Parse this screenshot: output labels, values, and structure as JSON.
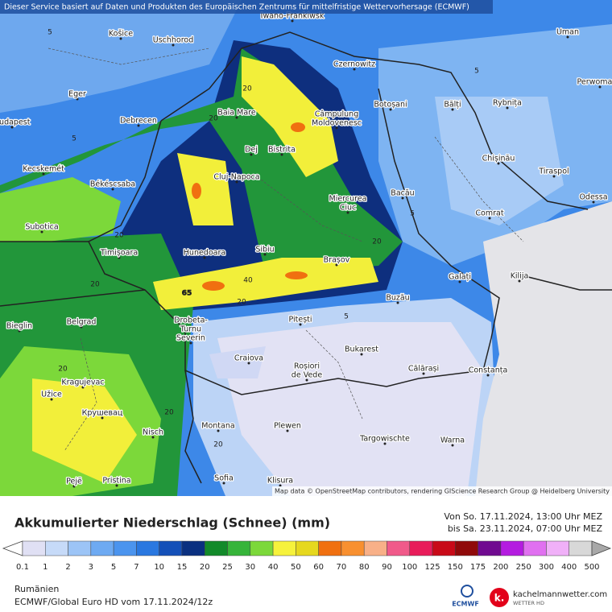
{
  "header": "Dieser Service basiert auf Daten und Produkten des Europäischen Zentrums für mittelfristige Wettervorhersage (ECMWF)",
  "attribution": "Map data © OpenStreetMap contributors, rendering GIScience Research Group @ Heidelberg University",
  "places": [
    [
      "Iwano-Frankiwsk"
    ],
    [
      "Košice"
    ],
    [
      "Uschhorod"
    ],
    [
      "Uman"
    ],
    [
      "Czernowitz"
    ],
    [
      "Perwomaisk"
    ],
    [
      "Eger"
    ],
    [
      "Baia Mare"
    ],
    [
      "Câmpulung",
      "Moldovenesc"
    ],
    [
      "Botoșani"
    ],
    [
      "Bălți"
    ],
    [
      "Rybnița"
    ],
    [
      "Budapest"
    ],
    [
      "Debrecen"
    ],
    [
      "Dej"
    ],
    [
      "Bistrita"
    ],
    [
      "Chișinău"
    ],
    [
      "Kecskemét"
    ],
    [
      "Tiraspol"
    ],
    [
      "Cluj-Napoca"
    ],
    [
      "Békéscsaba"
    ],
    [
      "Miercurea",
      "Ciuc"
    ],
    [
      "Bacău"
    ],
    [
      "Odessa"
    ],
    [
      "Comrat"
    ],
    [
      "Subotica"
    ],
    [
      "Timișoara"
    ],
    [
      "Hunedoara"
    ],
    [
      "Sibiu"
    ],
    [
      "Brașov"
    ],
    [
      "Galați"
    ],
    [
      "Kilija"
    ],
    [
      "Buzău"
    ],
    [
      "Drobeta-",
      "Turnu",
      "Severin"
    ],
    [
      "Pitești"
    ],
    [
      "Bieglin"
    ],
    [
      "Belgrad"
    ],
    [
      "Bukarest"
    ],
    [
      "Craiova"
    ],
    [
      "Roșiori",
      "de Vede"
    ],
    [
      "Călărași"
    ],
    [
      "Constanța"
    ],
    [
      "Kragujevac"
    ],
    [
      "Užice"
    ],
    [
      "Крушевац"
    ],
    [
      "Nisch"
    ],
    [
      "Montana"
    ],
    [
      "Plewen"
    ],
    [
      "Targowischte"
    ],
    [
      "Warna"
    ],
    [
      "Pejë"
    ],
    [
      "Pristina"
    ],
    [
      "Sofia"
    ],
    [
      "Klisura"
    ]
  ],
  "contour_labels": [
    "20",
    "5",
    "20",
    "5",
    "5",
    "20",
    "20",
    "40",
    "65",
    "20",
    "5",
    "20",
    "20",
    "20",
    "5",
    "20"
  ],
  "legend": {
    "title": "Akkumulierter Niederschlag (Schnee) (mm)",
    "period_from": "Von So. 17.11.2024, 13:00 Uhr MEZ",
    "period_to": "bis Sa. 23.11.2024, 07:00 Uhr MEZ",
    "ticks": [
      0.1,
      1,
      2,
      3,
      5,
      7,
      10,
      15,
      20,
      25,
      30,
      40,
      50,
      60,
      70,
      80,
      90,
      100,
      125,
      150,
      175,
      200,
      250,
      300,
      400,
      500
    ],
    "colors": [
      "#ffffff",
      "#e0e0f4",
      "#c6daf8",
      "#9cc4f6",
      "#6eaaf2",
      "#4b94ee",
      "#2a78e0",
      "#1450b8",
      "#0a3080",
      "#128a2a",
      "#36b43a",
      "#7cd83a",
      "#f6f23c",
      "#e6d81e",
      "#f07010",
      "#f89030",
      "#f8b088",
      "#f05a8a",
      "#e81c5a",
      "#c80a18",
      "#900a0a",
      "#700a90",
      "#b41ce0",
      "#e070f0",
      "#f0b0f8",
      "#d8d8d8",
      "#a8a8a8"
    ]
  },
  "footer": {
    "region": "Rumänien",
    "model": "ECMWF/Global Euro HD vom  17.11.2024/12z",
    "ecmwf_logo": "ECMWF",
    "brand": "kachelmannwetter.com",
    "brand_sub": "WETTER HD",
    "brand_mark": "k."
  }
}
